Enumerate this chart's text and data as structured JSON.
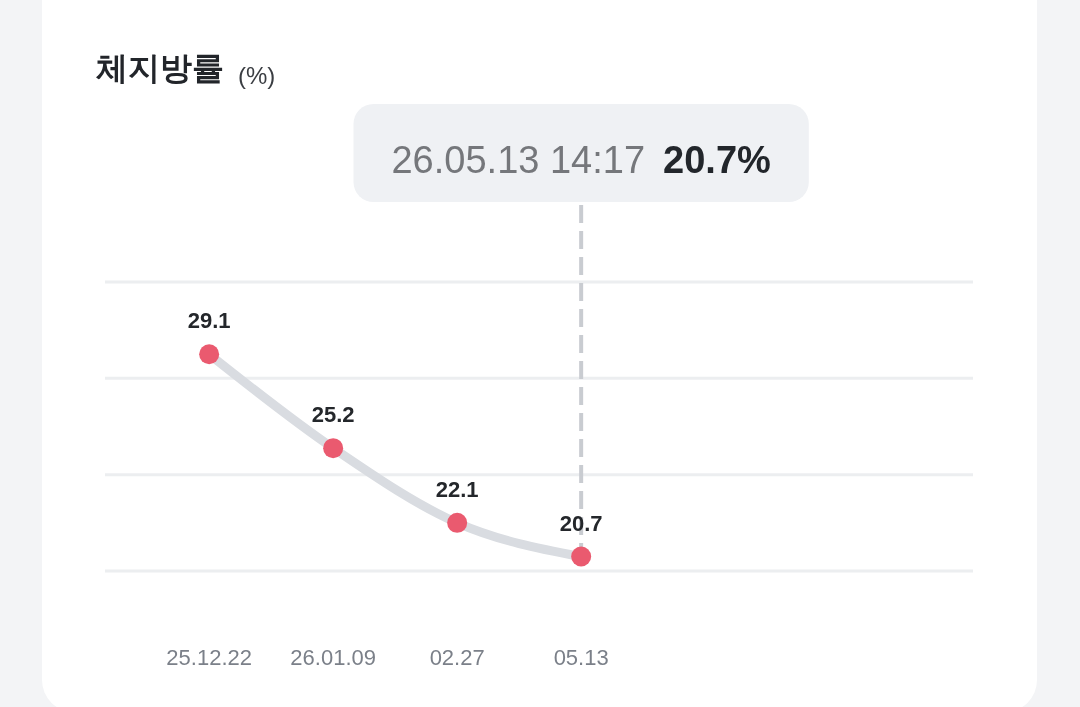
{
  "chart_data": {
    "type": "line",
    "title": "체지방률",
    "subtitle": "(%)",
    "categories": [
      "25.12.22",
      "26.01.09",
      "02.27",
      "05.13"
    ],
    "series": [
      {
        "values": [
          29.1,
          25.2,
          22.1,
          20.7
        ],
        "color": "#d9dce1",
        "colors": [
          "#ea5a6f",
          "#ea5a6f",
          "#ea5a6f",
          "#ea5a6f"
        ]
      }
    ],
    "ylim": [
      20.1,
      32.1
    ],
    "yticks": [
      {
        "value": 20.1,
        "label": null
      },
      {
        "value": 24.1,
        "label": null
      },
      {
        "value": 28.1,
        "label": null
      },
      {
        "value": 32.1,
        "label": null
      }
    ],
    "tick_labels": "x",
    "grid": "y",
    "data_labels": true,
    "marker": "circle",
    "line_style": "solid",
    "ref_lines": [
      {
        "axis": "x",
        "value": "05.13",
        "color": "#c9ccd1",
        "line_style": "dashed"
      }
    ],
    "annotations": [
      "26.05.13 14:17",
      "20.7%"
    ]
  }
}
